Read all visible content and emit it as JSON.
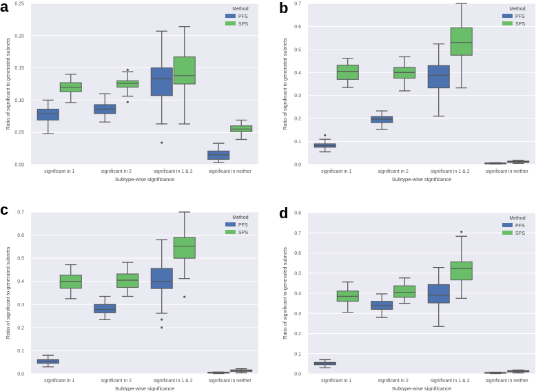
{
  "colors": {
    "PFS": "#4C72B0",
    "SPS": "#6ABE6A",
    "background": "#EAEAF2",
    "line": "#555555"
  },
  "chart_data": [
    {
      "type": "box",
      "panel": "a",
      "xlabel": "Subtype-wise significance",
      "ylabel": "Ratio of significant to generated subnets",
      "categories": [
        "significant in 1",
        "significant in 2",
        "significant in 1 & 2",
        "significant in neither"
      ],
      "ylim": [
        0,
        0.25
      ],
      "yticks": [
        "0.00",
        "0.05",
        "0.10",
        "0.15",
        "0.20",
        "0.25"
      ],
      "ytick_values": [
        0,
        0.05,
        0.1,
        0.15,
        0.2,
        0.25
      ],
      "legend": {
        "title": "Method",
        "entries": [
          "PFS",
          "SPS"
        ],
        "placement": "top-right"
      },
      "grid": true,
      "series": [
        {
          "name": "PFS",
          "boxes": [
            {
              "whislo": 0.048,
              "q1": 0.069,
              "med": 0.079,
              "q3": 0.086,
              "whishi": 0.1,
              "fliers": []
            },
            {
              "whislo": 0.066,
              "q1": 0.079,
              "med": 0.086,
              "q3": 0.093,
              "whishi": 0.11,
              "fliers": []
            },
            {
              "whislo": 0.063,
              "q1": 0.107,
              "med": 0.133,
              "q3": 0.15,
              "whishi": 0.207,
              "fliers": [
                0.034
              ]
            },
            {
              "whislo": 0.003,
              "q1": 0.008,
              "med": 0.015,
              "q3": 0.021,
              "whishi": 0.033,
              "fliers": []
            }
          ]
        },
        {
          "name": "SPS",
          "boxes": [
            {
              "whislo": 0.096,
              "q1": 0.113,
              "med": 0.12,
              "q3": 0.127,
              "whishi": 0.14,
              "fliers": []
            },
            {
              "whislo": 0.106,
              "q1": 0.12,
              "med": 0.126,
              "q3": 0.13,
              "whishi": 0.144,
              "fliers": [
                0.097,
                0.147
              ]
            },
            {
              "whislo": 0.063,
              "q1": 0.125,
              "med": 0.138,
              "q3": 0.167,
              "whishi": 0.214,
              "fliers": []
            },
            {
              "whislo": 0.039,
              "q1": 0.051,
              "med": 0.055,
              "q3": 0.06,
              "whishi": 0.069,
              "fliers": []
            }
          ]
        }
      ]
    },
    {
      "type": "box",
      "panel": "b",
      "xlabel": "Subtype-wise significance",
      "ylabel": "Ratio of significant to generated subnets",
      "categories": [
        "significant in 1",
        "significant in 2",
        "significant in 1 & 2",
        "significant in neither"
      ],
      "ylim": [
        0,
        0.7
      ],
      "yticks": [
        "0.0",
        "0.1",
        "0.2",
        "0.3",
        "0.4",
        "0.5",
        "0.6",
        "0.7"
      ],
      "ytick_values": [
        0,
        0.1,
        0.2,
        0.3,
        0.4,
        0.5,
        0.6,
        0.7
      ],
      "legend": {
        "title": "Method",
        "entries": [
          "PFS",
          "SPS"
        ],
        "placement": "top-right"
      },
      "grid": true,
      "series": [
        {
          "name": "PFS",
          "boxes": [
            {
              "whislo": 0.055,
              "q1": 0.075,
              "med": 0.082,
              "q3": 0.09,
              "whishi": 0.11,
              "fliers": [
                0.127
              ]
            },
            {
              "whislo": 0.152,
              "q1": 0.182,
              "med": 0.197,
              "q3": 0.208,
              "whishi": 0.233,
              "fliers": []
            },
            {
              "whislo": 0.21,
              "q1": 0.333,
              "med": 0.388,
              "q3": 0.43,
              "whishi": 0.524,
              "fliers": []
            },
            {
              "whislo": 0.002,
              "q1": 0.003,
              "med": 0.005,
              "q3": 0.007,
              "whishi": 0.008,
              "fliers": []
            }
          ]
        },
        {
          "name": "SPS",
          "boxes": [
            {
              "whislo": 0.335,
              "q1": 0.37,
              "med": 0.405,
              "q3": 0.432,
              "whishi": 0.462,
              "fliers": []
            },
            {
              "whislo": 0.32,
              "q1": 0.375,
              "med": 0.4,
              "q3": 0.422,
              "whishi": 0.468,
              "fliers": []
            },
            {
              "whislo": 0.333,
              "q1": 0.475,
              "med": 0.53,
              "q3": 0.594,
              "whishi": 0.7,
              "fliers": []
            },
            {
              "whislo": 0.005,
              "q1": 0.009,
              "med": 0.012,
              "q3": 0.015,
              "whishi": 0.018,
              "fliers": []
            }
          ]
        }
      ]
    },
    {
      "type": "box",
      "panel": "c",
      "xlabel": "Subtype-wise significance",
      "ylabel": "Ratio of significant to generated subnets",
      "categories": [
        "significant in 1",
        "significant in 2",
        "significant in 1 & 2",
        "significant in neither"
      ],
      "ylim": [
        0,
        0.7
      ],
      "yticks": [
        "0.0",
        "0.1",
        "0.2",
        "0.3",
        "0.4",
        "0.5",
        "0.6",
        "0.7"
      ],
      "ytick_values": [
        0,
        0.1,
        0.2,
        0.3,
        0.4,
        0.5,
        0.6,
        0.7
      ],
      "legend": {
        "title": "Method",
        "entries": [
          "PFS",
          "SPS"
        ],
        "placement": "top-right"
      },
      "grid": true,
      "series": [
        {
          "name": "PFS",
          "boxes": [
            {
              "whislo": 0.03,
              "q1": 0.045,
              "med": 0.054,
              "q3": 0.061,
              "whishi": 0.08,
              "fliers": []
            },
            {
              "whislo": 0.234,
              "q1": 0.264,
              "med": 0.278,
              "q3": 0.3,
              "whishi": 0.335,
              "fliers": []
            },
            {
              "whislo": 0.262,
              "q1": 0.369,
              "med": 0.4,
              "q3": 0.456,
              "whishi": 0.58,
              "fliers": [
                0.235,
                0.2
              ]
            },
            {
              "whislo": 0.001,
              "q1": 0.003,
              "med": 0.005,
              "q3": 0.007,
              "whishi": 0.008,
              "fliers": []
            }
          ]
        },
        {
          "name": "SPS",
          "boxes": [
            {
              "whislo": 0.325,
              "q1": 0.37,
              "med": 0.4,
              "q3": 0.427,
              "whishi": 0.472,
              "fliers": []
            },
            {
              "whislo": 0.335,
              "q1": 0.374,
              "med": 0.405,
              "q3": 0.432,
              "whishi": 0.482,
              "fliers": []
            },
            {
              "whislo": 0.412,
              "q1": 0.5,
              "med": 0.552,
              "q3": 0.59,
              "whishi": 0.7,
              "fliers": [
                0.333
              ]
            },
            {
              "whislo": 0.004,
              "q1": 0.01,
              "med": 0.013,
              "q3": 0.017,
              "whishi": 0.022,
              "fliers": []
            }
          ]
        }
      ]
    },
    {
      "type": "box",
      "panel": "d",
      "xlabel": "Subtype-wise significance",
      "ylabel": "Ratio of significant to generated subnets",
      "categories": [
        "significant in 1",
        "significant in 2",
        "significant in 1 & 2",
        "significant in neither"
      ],
      "ylim": [
        0,
        0.8
      ],
      "yticks": [
        "0.0",
        "0.1",
        "0.2",
        "0.3",
        "0.4",
        "0.5",
        "0.6",
        "0.7",
        "0.8"
      ],
      "ytick_values": [
        0,
        0.1,
        0.2,
        0.3,
        0.4,
        0.5,
        0.6,
        0.7,
        0.8
      ],
      "legend": {
        "title": "Method",
        "entries": [
          "PFS",
          "SPS"
        ],
        "placement": "top-right"
      },
      "grid": true,
      "series": [
        {
          "name": "PFS",
          "boxes": [
            {
              "whislo": 0.03,
              "q1": 0.045,
              "med": 0.05,
              "q3": 0.057,
              "whishi": 0.07,
              "fliers": []
            },
            {
              "whislo": 0.28,
              "q1": 0.32,
              "med": 0.34,
              "q3": 0.36,
              "whishi": 0.397,
              "fliers": []
            },
            {
              "whislo": 0.235,
              "q1": 0.352,
              "med": 0.39,
              "q3": 0.443,
              "whishi": 0.528,
              "fliers": []
            },
            {
              "whislo": 0.001,
              "q1": 0.003,
              "med": 0.005,
              "q3": 0.007,
              "whishi": 0.008,
              "fliers": []
            }
          ]
        },
        {
          "name": "SPS",
          "boxes": [
            {
              "whislo": 0.305,
              "q1": 0.36,
              "med": 0.385,
              "q3": 0.411,
              "whishi": 0.456,
              "fliers": []
            },
            {
              "whislo": 0.35,
              "q1": 0.38,
              "med": 0.405,
              "q3": 0.437,
              "whishi": 0.476,
              "fliers": []
            },
            {
              "whislo": 0.375,
              "q1": 0.466,
              "med": 0.523,
              "q3": 0.556,
              "whishi": 0.683,
              "fliers": [
                0.705
              ]
            },
            {
              "whislo": 0.004,
              "q1": 0.009,
              "med": 0.012,
              "q3": 0.016,
              "whishi": 0.019,
              "fliers": []
            }
          ]
        }
      ]
    }
  ]
}
